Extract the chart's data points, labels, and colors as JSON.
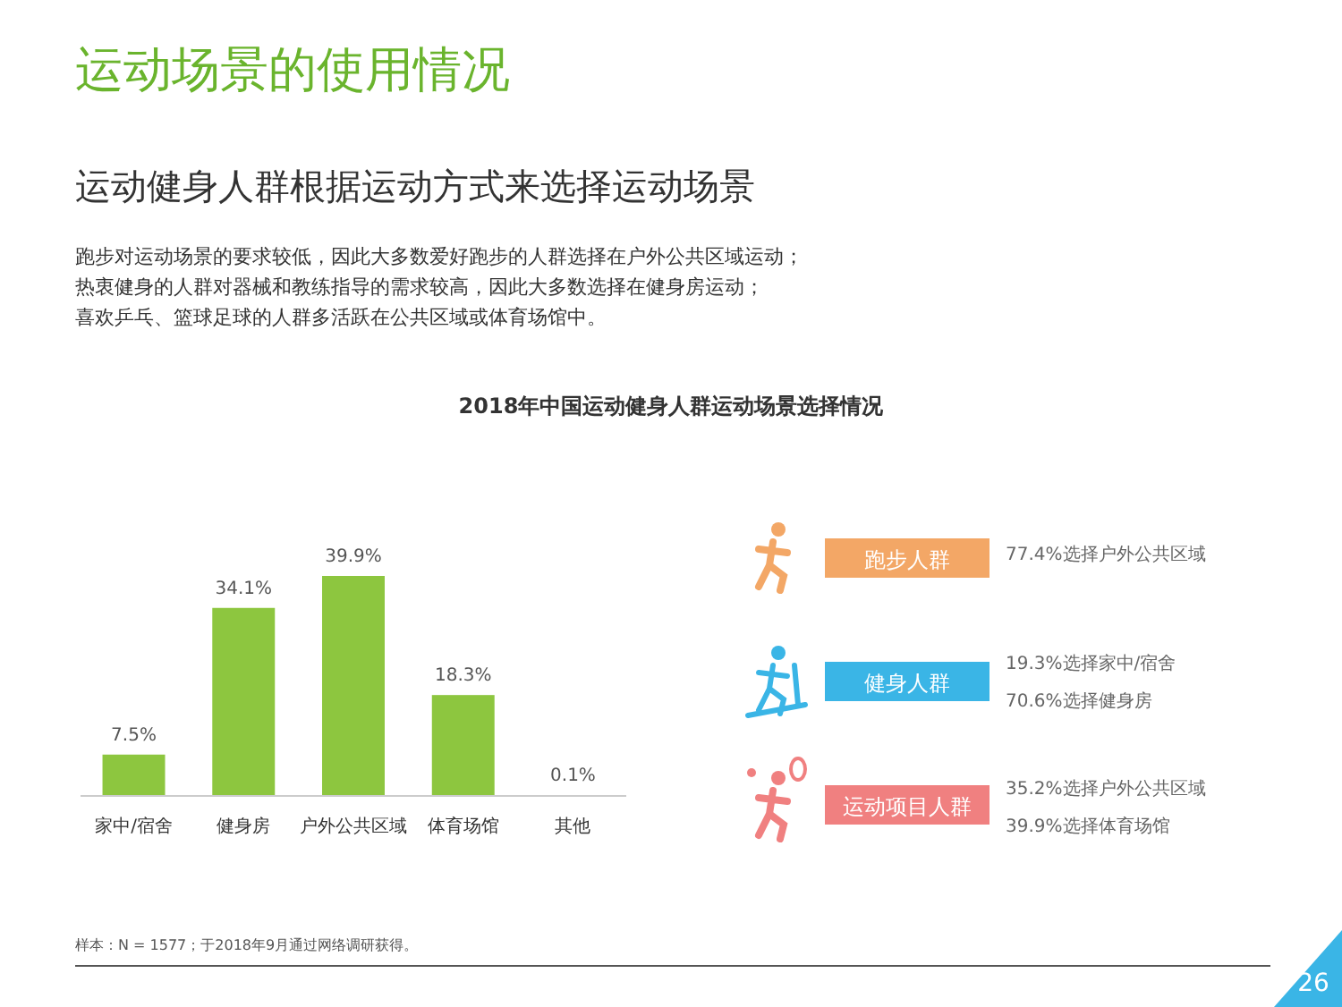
{
  "chart_data": {
    "type": "bar",
    "title": "运动场景的使用情况",
    "subtitle": "运动健身人群根据运动方式来选择运动场景",
    "categories": [
      "家中/宿舍",
      "健身房",
      "户外公共区域",
      "体育场馆",
      "其他"
    ],
    "values": [
      7.5,
      34.1,
      39.9,
      18.3,
      0.1
    ],
    "value_labels": [
      "7.5%",
      "34.1%",
      "39.9%",
      "18.3%",
      "0.1%"
    ],
    "color": "#8dc63f",
    "annotations": [
      "跑步对运动场景的要求较低，因此大多数爱好跑步的人群选择在户外公共区域运动；",
      "热衷健身的人群对器械和教练指导的需求较高，因此大多数选择在健身房运动；",
      "喜欢乒乓、篮球足球的人群多活跃在公共区域或体育场馆中。",
      "2018年中国运动健身人群运动场景选择情况",
      "跑步人群",
      "77.4%选择户外公共区域",
      "健身人群",
      "19.3%选择家中/宿舍",
      "70.6%选择健身房",
      "运动项目人群",
      "35.2%选择户外公共区域",
      "39.9%选择体育场馆",
      "样本：N = 1577；于2018年9月通过网络调研获得。",
      "26"
    ]
  }
}
